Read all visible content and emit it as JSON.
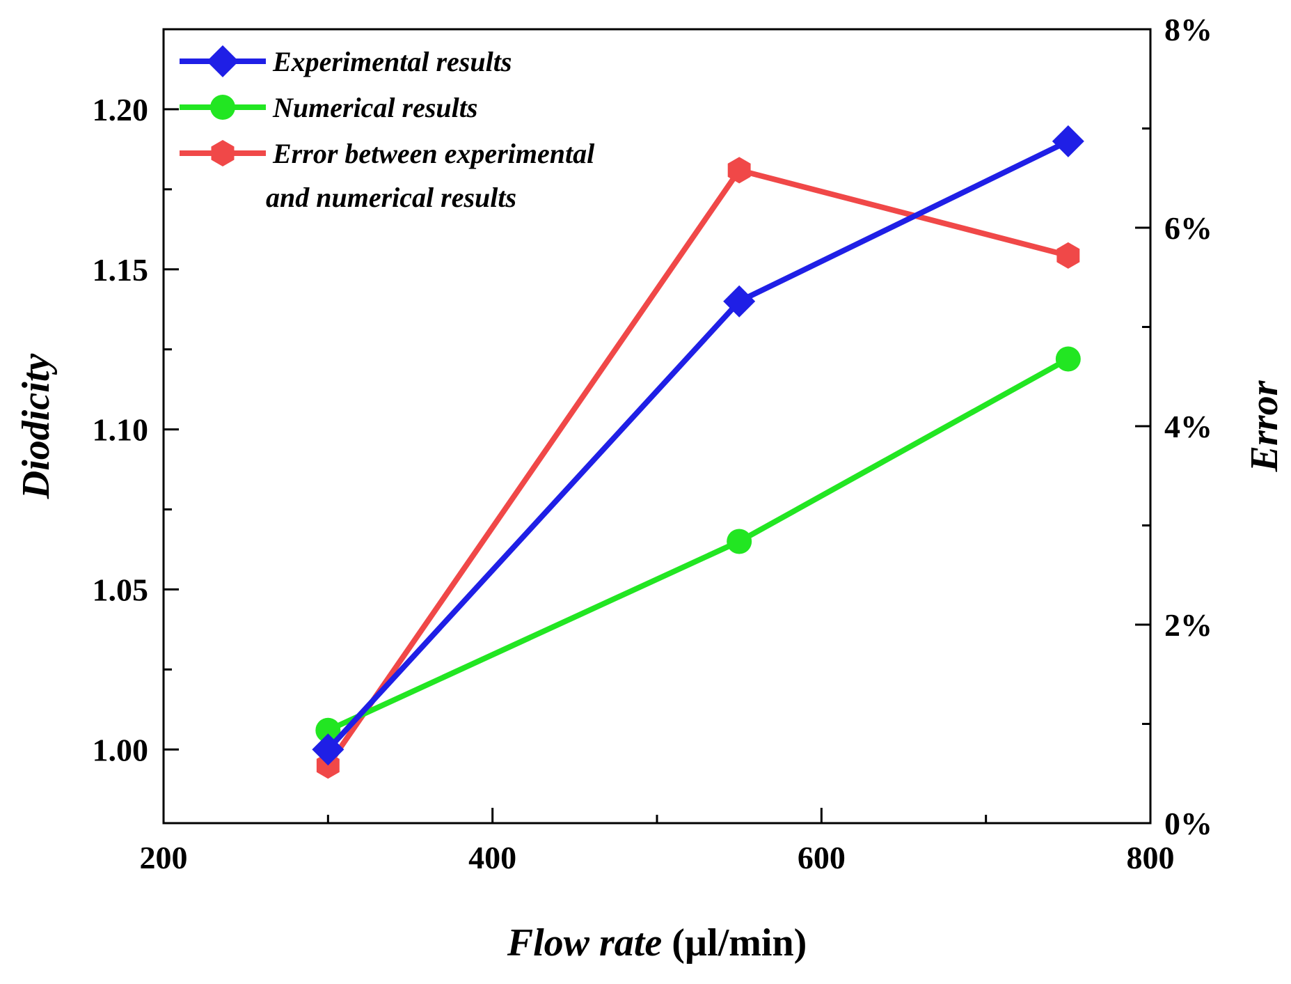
{
  "chart_data": {
    "type": "line",
    "title": "",
    "xlabel": "Flow rate",
    "xlabel_unit": " (µl/min)",
    "ylabel": "Diodicity",
    "y2label": "Error",
    "xlim": [
      200,
      800
    ],
    "ylim": [
      0.977,
      1.225
    ],
    "y2lim": [
      0,
      8
    ],
    "xticks": [
      {
        "value": 200,
        "label": "200"
      },
      {
        "value": 400,
        "label": "400"
      },
      {
        "value": 600,
        "label": "600"
      },
      {
        "value": 800,
        "label": "800"
      }
    ],
    "xminor": [
      300,
      500,
      700
    ],
    "yticks": [
      {
        "value": 1.0,
        "label": "1.00"
      },
      {
        "value": 1.05,
        "label": "1.05"
      },
      {
        "value": 1.1,
        "label": "1.10"
      },
      {
        "value": 1.15,
        "label": "1.15"
      },
      {
        "value": 1.2,
        "label": "1.20"
      }
    ],
    "yminor": [
      1.025,
      1.075,
      1.125,
      1.175
    ],
    "y2ticks": [
      {
        "value": 0,
        "label": "0%"
      },
      {
        "value": 2,
        "label": "2%"
      },
      {
        "value": 4,
        "label": "4%"
      },
      {
        "value": 6,
        "label": "6%"
      },
      {
        "value": 8,
        "label": "8%"
      }
    ],
    "y2minor": [
      1,
      3,
      5,
      7
    ],
    "legend_position": "top-left",
    "grid": false,
    "series": [
      {
        "name": "Experimental results",
        "axis": "left",
        "color": "#1f1fe6",
        "marker": "diamond",
        "x": [
          300,
          550,
          750
        ],
        "values": [
          1.0,
          1.14,
          1.19
        ]
      },
      {
        "name": "Numerical results",
        "axis": "left",
        "color": "#22e622",
        "marker": "circle",
        "x": [
          300,
          550,
          750
        ],
        "values": [
          1.006,
          1.065,
          1.122
        ]
      },
      {
        "name": "Error between experimental",
        "name_line2": "and numerical results",
        "axis": "right",
        "color": "#f04848",
        "marker": "hexagon",
        "x": [
          300,
          550,
          750
        ],
        "values": [
          0.58,
          6.58,
          5.72
        ]
      }
    ]
  }
}
